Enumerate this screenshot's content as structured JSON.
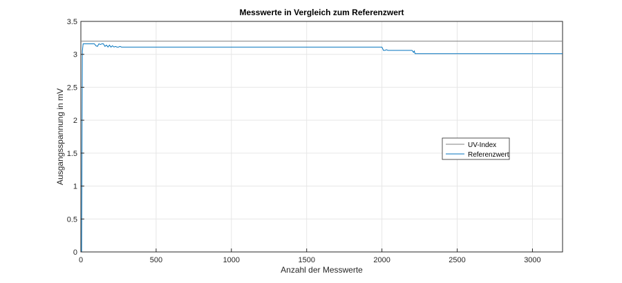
{
  "chart_data": {
    "type": "line",
    "title": "Messwerte in Vergleich zum Referenzwert",
    "xlabel": "Anzahl der Messwerte",
    "ylabel": "Ausgangsspannung in mV",
    "xlim": [
      0,
      3200
    ],
    "ylim": [
      0,
      3.5
    ],
    "xticks": [
      0,
      500,
      1000,
      1500,
      2000,
      2500,
      3000
    ],
    "yticks": [
      0,
      0.5,
      1,
      1.5,
      2,
      2.5,
      3,
      3.5
    ],
    "xtick_labels": [
      "0",
      "500",
      "1000",
      "1500",
      "2000",
      "2500",
      "3000"
    ],
    "ytick_labels": [
      "0",
      "0.5",
      "1",
      "1.5",
      "2",
      "2.5",
      "3",
      "3.5"
    ],
    "grid": true,
    "legend_position": "right",
    "series": [
      {
        "name": "UV-Index",
        "color": "#7f7f7f",
        "x": [
          0,
          3200
        ],
        "y": [
          3.2,
          3.2
        ]
      },
      {
        "name": "Referenzwert",
        "color": "#0072bd",
        "x": [
          0,
          5,
          10,
          15,
          20,
          40,
          90,
          100,
          110,
          120,
          130,
          140,
          150,
          160,
          170,
          180,
          190,
          200,
          210,
          220,
          230,
          240,
          250,
          260,
          270,
          2000,
          2010,
          2020,
          2030,
          2040,
          2200,
          2210,
          2215,
          2220,
          3200
        ],
        "y": [
          0,
          0,
          3.05,
          3.16,
          3.16,
          3.16,
          3.16,
          3.13,
          3.12,
          3.16,
          3.15,
          3.16,
          3.16,
          3.12,
          3.14,
          3.11,
          3.14,
          3.11,
          3.13,
          3.11,
          3.12,
          3.11,
          3.11,
          3.12,
          3.11,
          3.11,
          3.06,
          3.06,
          3.07,
          3.06,
          3.06,
          3.03,
          3.05,
          3.01,
          3.01
        ]
      }
    ]
  }
}
